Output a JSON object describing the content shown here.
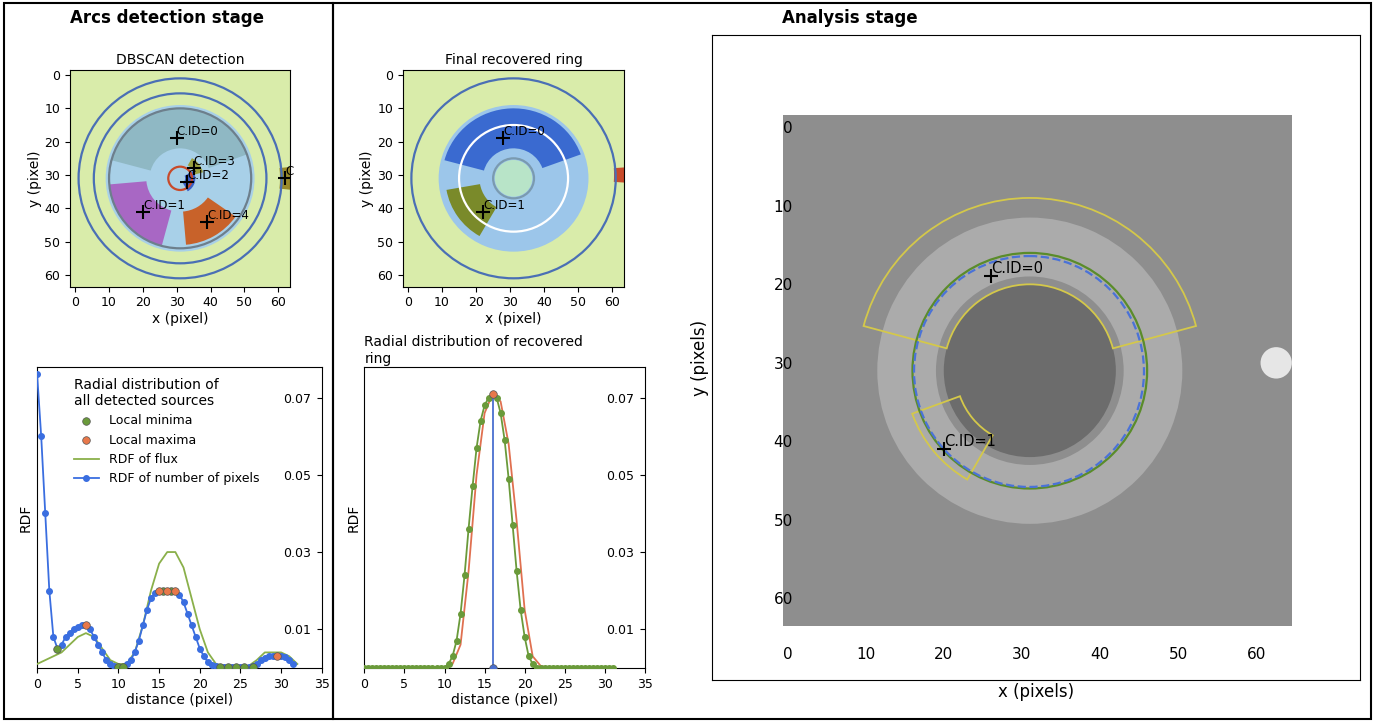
{
  "stages": [
    {
      "title": "Arcs detection stage"
    },
    {
      "title": "Analysis stage"
    }
  ],
  "chart_data": [
    {
      "type": "image",
      "title": "DBSCAN detection",
      "x_label": "x (pixel)",
      "y_label": "y (pixel)",
      "xlim": [
        -1.5,
        63.5
      ],
      "ylim": [
        63.5,
        -1.5
      ],
      "xticks": [
        0,
        10,
        20,
        30,
        40,
        50,
        60
      ],
      "yticks": [
        0,
        10,
        20,
        30,
        40,
        50,
        60
      ],
      "extent": [
        -1.5,
        63.5,
        -1.5,
        63.5
      ],
      "image_color": "#d9ecaa",
      "marker": "plus",
      "regions": [
        {
          "center": [
            31,
            31
          ],
          "r_in": 0,
          "r_out": 22,
          "theta1": 0,
          "theta2": 360,
          "color": "#a8d0e8"
        }
      ],
      "clusters": [
        {
          "label": "C.ID=0",
          "center": [
            31,
            31
          ],
          "r_in": 9,
          "r_out": 21,
          "theta1": 195,
          "theta2": 340,
          "color": "#8fb8c4",
          "marker_at": [
            30,
            19
          ]
        },
        {
          "label": "C.ID=1",
          "center": [
            31,
            31
          ],
          "r_in": 10,
          "r_out": 21,
          "theta1": 105,
          "theta2": 175,
          "color": "#a867c4",
          "marker_at": [
            20,
            41
          ]
        },
        {
          "label": "C.ID=2",
          "center": [
            31,
            31
          ],
          "r_in": 1.5,
          "r_out": 4.5,
          "theta1": -30,
          "theta2": 60,
          "color": "#3a5fc8",
          "marker_at": [
            33,
            32
          ]
        },
        {
          "label": "C.ID=3",
          "center": [
            31,
            31
          ],
          "r_in": 4.5,
          "r_out": 7,
          "theta1": 300,
          "theta2": 345,
          "color": "#9aa040",
          "marker_at": [
            35,
            28
          ]
        },
        {
          "label": "C.ID=4",
          "center": [
            31,
            31
          ],
          "r_in": 10,
          "r_out": 20,
          "theta1": 35,
          "theta2": 85,
          "color": "#c8622a",
          "marker_at": [
            39,
            44
          ]
        },
        {
          "label": "C",
          "center": [
            31,
            31
          ],
          "r_in": 29.5,
          "r_out": 33,
          "theta1": -6,
          "theta2": 6,
          "color": "#9a8a2a",
          "marker_at": [
            62,
            31
          ]
        }
      ],
      "circles": [
        {
          "center": [
            31,
            31
          ],
          "r": 30,
          "color": "#4a6fb5",
          "line_style": "solid"
        },
        {
          "center": [
            31,
            31
          ],
          "r": 25.5,
          "color": "#4a6fb5",
          "line_style": "solid"
        },
        {
          "center": [
            31,
            31
          ],
          "r": 21,
          "color": "#6d7f8c",
          "line_style": "solid"
        },
        {
          "center": [
            31,
            31
          ],
          "r": 3.5,
          "color": "#c84a2a",
          "line_style": "solid"
        }
      ]
    },
    {
      "type": "image",
      "title": "Final recovered ring",
      "x_label": "x (pixel)",
      "y_label": "y (pixel)",
      "xlim": [
        -1.5,
        63.5
      ],
      "ylim": [
        63.5,
        -1.5
      ],
      "xticks": [
        0,
        10,
        20,
        30,
        40,
        50,
        60
      ],
      "yticks": [
        0,
        10,
        20,
        30,
        40,
        50,
        60
      ],
      "extent": [
        -1.5,
        63.5,
        -1.5,
        63.5
      ],
      "image_color": "#d9ecaa",
      "marker": "plus",
      "regions": [
        {
          "center": [
            31,
            31
          ],
          "r_in": 0,
          "r_out": 22,
          "theta1": 0,
          "theta2": 360,
          "color": "#9cc6ea"
        },
        {
          "center": [
            31,
            31
          ],
          "r_in": 0,
          "r_out": 5.5,
          "theta1": 0,
          "theta2": 360,
          "color": "#b8e4c8"
        },
        {
          "center": [
            31,
            30
          ],
          "r_in": 29.5,
          "r_out": 33,
          "theta1": -4,
          "theta2": 4,
          "color": "#c84a2a"
        }
      ],
      "clusters": [
        {
          "label": "C.ID=0",
          "center": [
            31,
            31
          ],
          "r_in": 9,
          "r_out": 21,
          "theta1": 195,
          "theta2": 340,
          "color": "#3a6ad0",
          "marker_at": [
            28,
            19
          ]
        },
        {
          "label": "C.ID=1",
          "center": [
            31,
            31
          ],
          "r_in": 10,
          "r_out": 20,
          "theta1": 120,
          "theta2": 170,
          "color": "#7a8a2a",
          "marker_at": [
            22,
            41
          ]
        }
      ],
      "circles": [
        {
          "center": [
            31,
            31
          ],
          "r": 30,
          "color": "#4a6fb5",
          "line_style": "solid"
        },
        {
          "center": [
            31,
            31
          ],
          "r": 16,
          "color": "#ffffff",
          "line_style": "solid"
        },
        {
          "center": [
            31,
            31
          ],
          "r": 6,
          "color": "#7a9ab0",
          "line_style": "solid"
        }
      ]
    },
    {
      "type": "line",
      "legend_title": "Radial distribution of\nall detected sources",
      "x_label": "distance (pixel)",
      "y_label": "RDF",
      "legend": "upper right",
      "xlim": [
        0,
        35
      ],
      "ylim": [
        0,
        0.078
      ],
      "xticks": [
        0,
        5,
        10,
        15,
        20,
        25,
        30,
        35
      ],
      "yticks": [
        0.01,
        0.03,
        0.05,
        0.07
      ],
      "series": [
        {
          "name": "Local minima",
          "type": "scatter",
          "color": "#6a9a3a",
          "marker": "circle",
          "x": [
            2.5,
            10,
            10.5,
            15.5,
            16.5,
            22.5,
            23.5,
            24.5,
            25.5,
            26.5
          ],
          "values": [
            0.005,
            0.0003,
            0.0003,
            0.02,
            0.02,
            0.0003,
            0.0003,
            0.0003,
            0.0003,
            0.0003
          ]
        },
        {
          "name": "Local maxima",
          "type": "scatter",
          "color": "#e8784a",
          "marker": "circle",
          "x": [
            6,
            15,
            16,
            17,
            29.5
          ],
          "values": [
            0.011,
            0.02,
            0.02,
            0.02,
            0.003
          ]
        },
        {
          "name": "RDF of flux",
          "type": "line",
          "color": "#8ab04a",
          "marker": "none",
          "line_style": "solid",
          "x": [
            0,
            1,
            2,
            3,
            4,
            5,
            6,
            7,
            8,
            9,
            10,
            11,
            12,
            13,
            14,
            15,
            16,
            17,
            18,
            19,
            20,
            21,
            22,
            23,
            24,
            25,
            26,
            27,
            28,
            29,
            30,
            31,
            32
          ],
          "values": [
            0.001,
            0.002,
            0.003,
            0.004,
            0.006,
            0.008,
            0.009,
            0.008,
            0.005,
            0.002,
            0.001,
            0.001,
            0.004,
            0.011,
            0.02,
            0.027,
            0.03,
            0.03,
            0.026,
            0.018,
            0.01,
            0.004,
            0.001,
            0.0005,
            0.0005,
            0.0005,
            0.0005,
            0.002,
            0.004,
            0.004,
            0.004,
            0.003,
            0.001
          ]
        },
        {
          "name": "RDF of number of pixels",
          "type": "line",
          "color": "#3a6ee0",
          "marker": "circle",
          "line_style": "solid",
          "x": [
            0,
            0.5,
            1,
            1.5,
            2,
            2.5,
            3,
            3.5,
            4,
            4.5,
            5,
            5.5,
            6,
            6.5,
            7,
            7.5,
            8,
            8.5,
            9,
            9.5,
            10,
            10.5,
            11,
            11.5,
            12,
            12.5,
            13,
            13.5,
            14,
            14.5,
            15,
            15.5,
            16,
            16.5,
            17,
            17.5,
            18,
            18.5,
            19,
            19.5,
            20,
            20.5,
            21,
            21.5,
            22,
            22.5,
            23,
            23.5,
            24,
            24.5,
            25,
            25.5,
            26,
            26.5,
            27,
            27.5,
            28,
            28.5,
            29,
            29.5,
            30,
            30.5,
            31,
            31.5
          ],
          "values": [
            0.076,
            0.06,
            0.04,
            0.02,
            0.008,
            0.005,
            0.006,
            0.008,
            0.009,
            0.01,
            0.0105,
            0.011,
            0.011,
            0.01,
            0.008,
            0.006,
            0.004,
            0.002,
            0.001,
            0.0005,
            0.0003,
            0.0003,
            0.001,
            0.002,
            0.004,
            0.007,
            0.011,
            0.015,
            0.018,
            0.0195,
            0.02,
            0.02,
            0.02,
            0.02,
            0.02,
            0.019,
            0.017,
            0.014,
            0.011,
            0.008,
            0.005,
            0.003,
            0.0015,
            0.0008,
            0.0004,
            0.0003,
            0.0003,
            0.0003,
            0.0003,
            0.0003,
            0.0003,
            0.0003,
            0.0003,
            0.0005,
            0.001,
            0.002,
            0.0025,
            0.003,
            0.003,
            0.003,
            0.003,
            0.0028,
            0.002,
            0.001
          ]
        }
      ]
    },
    {
      "type": "line",
      "title": "Radial distribution of recovered\nring",
      "x_label": "distance (pixel)",
      "y_label": "RDF",
      "xlim": [
        0,
        35
      ],
      "ylim": [
        0,
        0.078
      ],
      "xticks": [
        0,
        5,
        10,
        15,
        20,
        25,
        30,
        35
      ],
      "yticks": [
        0.01,
        0.03,
        0.05,
        0.07
      ],
      "series": [
        {
          "type": "line",
          "color": "#e07050",
          "marker": "none",
          "line_style": "solid",
          "x": [
            0,
            1,
            2,
            3,
            4,
            5,
            6,
            7,
            8,
            9,
            10,
            11,
            12,
            13,
            14,
            15,
            16,
            17,
            18,
            19,
            20,
            21,
            22,
            23,
            24,
            25,
            26,
            27,
            28,
            29,
            30,
            31
          ],
          "values": [
            0,
            0,
            0,
            0,
            0,
            0,
            0,
            0,
            0,
            0,
            0,
            0.001,
            0.006,
            0.025,
            0.05,
            0.066,
            0.071,
            0.069,
            0.058,
            0.038,
            0.015,
            0.003,
            0.0005,
            0,
            0,
            0,
            0,
            0,
            0,
            0,
            0,
            0
          ]
        },
        {
          "type": "line",
          "color": "#6a9a3a",
          "marker": "circle",
          "line_style": "solid",
          "x": [
            0,
            0.5,
            1,
            1.5,
            2,
            2.5,
            3,
            3.5,
            4,
            4.5,
            5,
            5.5,
            6,
            6.5,
            7,
            7.5,
            8,
            8.5,
            9,
            9.5,
            10,
            10.5,
            11,
            11.5,
            12,
            12.5,
            13,
            13.5,
            14,
            14.5,
            15,
            15.5,
            16,
            16.5,
            17,
            17.5,
            18,
            18.5,
            19,
            19.5,
            20,
            20.5,
            21,
            21.5,
            22,
            22.5,
            23,
            23.5,
            24,
            24.5,
            25,
            25.5,
            26,
            26.5,
            27,
            27.5,
            28,
            28.5,
            29,
            29.5,
            30,
            30.5,
            31
          ],
          "values": [
            0,
            0,
            0,
            0,
            0,
            0,
            0,
            0,
            0,
            0,
            0,
            0,
            0,
            0,
            0,
            0,
            0,
            0,
            0,
            0,
            0,
            0.001,
            0.003,
            0.007,
            0.014,
            0.024,
            0.036,
            0.047,
            0.057,
            0.064,
            0.068,
            0.07,
            0.071,
            0.07,
            0.066,
            0.059,
            0.049,
            0.037,
            0.025,
            0.015,
            0.008,
            0.003,
            0.001,
            0,
            0,
            0,
            0,
            0,
            0,
            0,
            0,
            0,
            0,
            0,
            0,
            0,
            0,
            0,
            0,
            0,
            0,
            0,
            0
          ]
        },
        {
          "type": "line",
          "color": "#4a6fd0",
          "marker": "none",
          "line_style": "solid",
          "x": [
            16,
            16
          ],
          "values": [
            0,
            0.071
          ]
        },
        {
          "type": "scatter",
          "color": "#4a6fd0",
          "marker": "circle",
          "x": [
            16
          ],
          "values": [
            0
          ]
        },
        {
          "type": "scatter",
          "color": "#e8784a",
          "marker": "circle",
          "x": [
            16
          ],
          "values": [
            0.071
          ]
        }
      ]
    },
    {
      "type": "image",
      "x_label": "x (pixels)",
      "y_label": "y (pixels)",
      "xlim": [
        -9.6,
        73.2
      ],
      "ylim": [
        70.4,
        -11.7
      ],
      "xticks": [
        0,
        10,
        20,
        30,
        40,
        50,
        60
      ],
      "yticks": [
        0,
        10,
        20,
        30,
        40,
        50,
        60
      ],
      "extent": [
        -0.5,
        64.5,
        -1.5,
        63.5
      ],
      "image_color": "#8e8e8e",
      "marker": "plus",
      "regions": [
        {
          "center": [
            31,
            31
          ],
          "r_in": 12,
          "r_out": 19.5,
          "theta1": 0,
          "theta2": 360,
          "color": "#ababab"
        },
        {
          "center": [
            31,
            31
          ],
          "r_in": 0,
          "r_out": 11,
          "theta1": 0,
          "theta2": 360,
          "color": "#6c6c6c"
        },
        {
          "center": [
            62.5,
            30
          ],
          "r_in": 0,
          "r_out": 2,
          "theta1": 0,
          "theta2": 360,
          "color": "#e6e6e6"
        }
      ],
      "contours": [
        {
          "label": "C.ID=0",
          "center": [
            31,
            31
          ],
          "r_in": 11,
          "r_out": 22,
          "theta1": 195,
          "theta2": 345,
          "color": "#d4c84a",
          "marker_at": [
            26,
            19
          ]
        },
        {
          "label": "C.ID=1",
          "center": [
            31,
            31
          ],
          "r_in": 9.5,
          "r_out": 16,
          "theta1": 120,
          "theta2": 160,
          "color": "#d4c84a",
          "marker_at": [
            20,
            41
          ]
        }
      ],
      "circles": [
        {
          "center": [
            31,
            31
          ],
          "r": 15,
          "color": "#5a8c2a",
          "line_style": "solid"
        },
        {
          "center": [
            30.9,
            31.1
          ],
          "r": 14.7,
          "color": "#4a72d8",
          "line_style": "dashed"
        }
      ]
    }
  ]
}
